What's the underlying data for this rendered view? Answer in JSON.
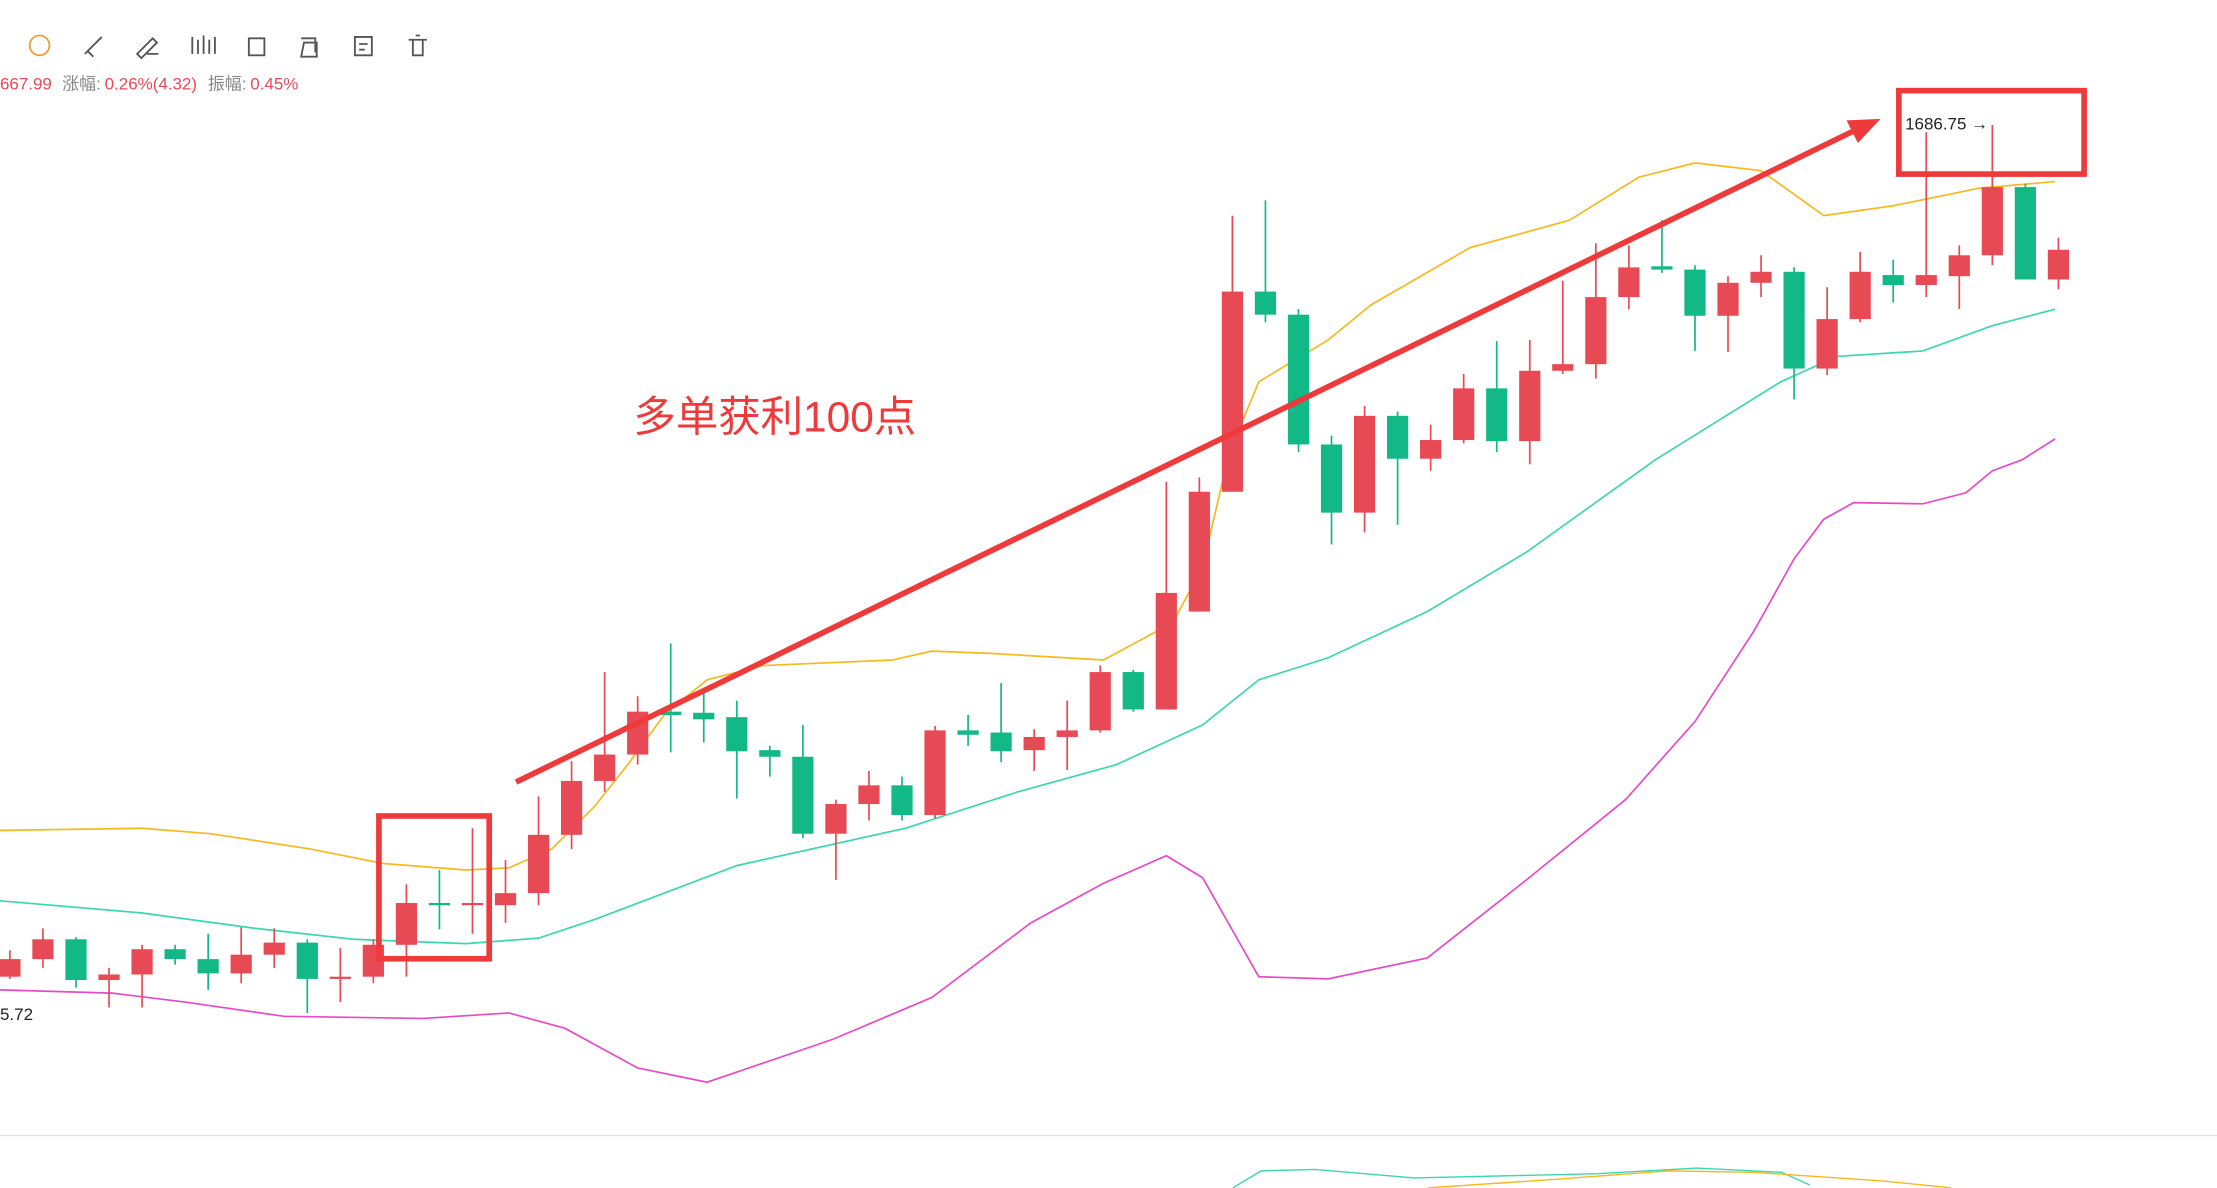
{
  "chart_data": {
    "type": "candlestick",
    "header": {
      "last": "667.99",
      "change_label": "涨幅:",
      "change": "0.26%(4.32)",
      "amp_label": "振幅:",
      "amp": "0.45%"
    },
    "annotation": "多单获利100点",
    "max_label": "1686.75 →",
    "min_label": "5.72",
    "up_color": "#e84a55",
    "down_color": "#12b886",
    "xlim": [
      -0.3,
      66.8
    ],
    "ylim": [
      1590.1,
      1698.1
    ],
    "open": [
      1609.3,
      1610.9,
      1612.7,
      1609.0,
      1609.5,
      1611.8,
      1610.9,
      1609.6,
      1611.3,
      1612.4,
      1609.1,
      1609.3,
      1612.2,
      1616.0,
      1615.8,
      1615.8,
      1616.9,
      1622.2,
      1627.1,
      1629.5,
      1633.4,
      1633.3,
      1632.9,
      1629.9,
      1629.3,
      1622.3,
      1625.0,
      1626.7,
      1624.0,
      1631.7,
      1631.5,
      1629.9,
      1631.1,
      1631.7,
      1637.0,
      1633.6,
      1642.5,
      1653.4,
      1671.6,
      1669.5,
      1657.7,
      1651.5,
      1660.3,
      1656.4,
      1658.1,
      1662.8,
      1658.0,
      1664.4,
      1665.0,
      1671.1,
      1673.9,
      1673.6,
      1669.4,
      1672.4,
      1673.4,
      1664.6,
      1669.1,
      1673.1,
      1672.2,
      1673.0,
      1674.9,
      1681.1,
      1672.7
    ],
    "high": [
      1611.7,
      1613.7,
      1612.9,
      1610.1,
      1612.2,
      1612.2,
      1613.2,
      1613.8,
      1613.7,
      1612.7,
      1611.9,
      1612.7,
      1617.7,
      1619.0,
      1622.8,
      1619.9,
      1625.7,
      1628.9,
      1637.0,
      1634.8,
      1639.6,
      1635.1,
      1634.4,
      1630.3,
      1632.2,
      1625.4,
      1628.0,
      1627.5,
      1632.1,
      1633.1,
      1636.0,
      1631.8,
      1634.4,
      1637.6,
      1637.2,
      1654.3,
      1654.7,
      1678.5,
      1679.9,
      1670.0,
      1658.5,
      1661.2,
      1660.7,
      1659.5,
      1664.1,
      1667.1,
      1667.2,
      1672.6,
      1676.0,
      1675.8,
      1678.1,
      1674.0,
      1673.0,
      1674.9,
      1673.8,
      1672.0,
      1675.2,
      1674.5,
      1686.1,
      1675.8,
      1686.75,
      1681.4,
      1676.5
    ],
    "low": [
      1609.1,
      1610.1,
      1608.3,
      1606.5,
      1606.5,
      1610.4,
      1608.1,
      1608.7,
      1610.1,
      1606.0,
      1607.0,
      1608.7,
      1609.3,
      1613.6,
      1613.2,
      1614.2,
      1615.8,
      1620.9,
      1626.1,
      1628.6,
      1629.7,
      1630.6,
      1625.5,
      1627.5,
      1621.9,
      1618.1,
      1623.5,
      1623.5,
      1623.7,
      1630.3,
      1628.8,
      1628.0,
      1628.1,
      1631.5,
      1633.4,
      1633.6,
      1642.5,
      1653.4,
      1668.8,
      1657.0,
      1648.6,
      1649.7,
      1650.4,
      1655.3,
      1657.8,
      1657.0,
      1655.9,
      1664.1,
      1663.7,
      1670.0,
      1673.3,
      1666.2,
      1666.1,
      1671.1,
      1661.8,
      1664.0,
      1668.8,
      1670.6,
      1671.1,
      1670.0,
      1674.0,
      1672.7,
      1671.8
    ],
    "close": [
      1610.9,
      1612.7,
      1609.0,
      1609.5,
      1611.8,
      1610.9,
      1609.6,
      1611.3,
      1612.4,
      1609.1,
      1609.3,
      1612.2,
      1616.0,
      1615.8,
      1616.0,
      1616.9,
      1622.2,
      1627.1,
      1629.5,
      1633.4,
      1633.1,
      1632.7,
      1629.8,
      1629.3,
      1622.3,
      1625.0,
      1626.7,
      1624.0,
      1631.7,
      1631.3,
      1629.8,
      1631.1,
      1631.7,
      1637.0,
      1633.6,
      1644.2,
      1653.4,
      1671.6,
      1669.5,
      1657.7,
      1651.5,
      1660.3,
      1656.4,
      1658.1,
      1662.8,
      1658.0,
      1664.4,
      1665.0,
      1671.1,
      1673.8,
      1673.6,
      1669.4,
      1672.4,
      1673.4,
      1664.6,
      1669.1,
      1673.4,
      1672.2,
      1673.1,
      1674.9,
      1681.1,
      1672.7,
      1675.4
    ],
    "lines": [
      {
        "color": "#f5b921",
        "x": [
          -0.3,
          4.0,
          6.1,
          9.1,
          11.3,
          13.8,
          15.1,
          16.4,
          17.7,
          18.7,
          19.8,
          21.1,
          22.8,
          26.7,
          27.9,
          29.7,
          33.1,
          35.2,
          36.1,
          36.9,
          37.8,
          39.9,
          41.2,
          44.2,
          47.2,
          49.3,
          51.0,
          53.0,
          54.9,
          57.0,
          59.6,
          61.9
        ],
        "values": [
          1622.6,
          1622.8,
          1622.3,
          1620.9,
          1619.6,
          1619.0,
          1619.2,
          1620.9,
          1624.8,
          1628.6,
          1633.1,
          1636.3,
          1637.6,
          1638.1,
          1638.9,
          1638.7,
          1638.1,
          1641.5,
          1646.6,
          1656.9,
          1663.4,
          1667.2,
          1670.4,
          1675.6,
          1678.1,
          1682.0,
          1683.3,
          1682.6,
          1678.5,
          1679.4,
          1681.0,
          1681.6
        ]
      },
      {
        "color": "#3dd6b0",
        "x": [
          -0.3,
          4.0,
          7.4,
          10.4,
          13.8,
          16.0,
          17.7,
          22.0,
          27.1,
          30.5,
          33.5,
          36.1,
          37.8,
          39.9,
          42.9,
          45.9,
          49.8,
          53.6,
          55.3,
          57.9,
          60.0,
          61.9
        ],
        "values": [
          1616.2,
          1615.1,
          1613.7,
          1612.7,
          1612.3,
          1612.8,
          1614.5,
          1619.4,
          1622.8,
          1626.1,
          1628.6,
          1632.2,
          1636.3,
          1638.3,
          1642.5,
          1647.9,
          1656.3,
          1663.4,
          1665.7,
          1666.2,
          1668.5,
          1670.0
        ]
      },
      {
        "color": "#e64bc6",
        "x": [
          -0.3,
          3.1,
          5.3,
          8.3,
          12.5,
          15.1,
          16.8,
          19.0,
          21.1,
          24.9,
          27.9,
          30.9,
          33.1,
          35.0,
          36.1,
          37.8,
          39.9,
          42.9,
          45.9,
          48.9,
          51.0,
          52.8,
          54.0,
          54.9,
          55.8,
          57.9,
          59.2,
          60.0,
          60.9,
          61.9
        ],
        "values": [
          1608.1,
          1607.8,
          1607.0,
          1605.7,
          1605.5,
          1606.0,
          1604.6,
          1601.0,
          1599.7,
          1603.6,
          1607.4,
          1614.2,
          1617.8,
          1620.3,
          1618.3,
          1609.3,
          1609.1,
          1611.0,
          1618.1,
          1625.4,
          1632.5,
          1640.8,
          1647.3,
          1650.9,
          1652.4,
          1652.3,
          1653.3,
          1655.3,
          1656.3,
          1658.2
        ]
      }
    ]
  }
}
